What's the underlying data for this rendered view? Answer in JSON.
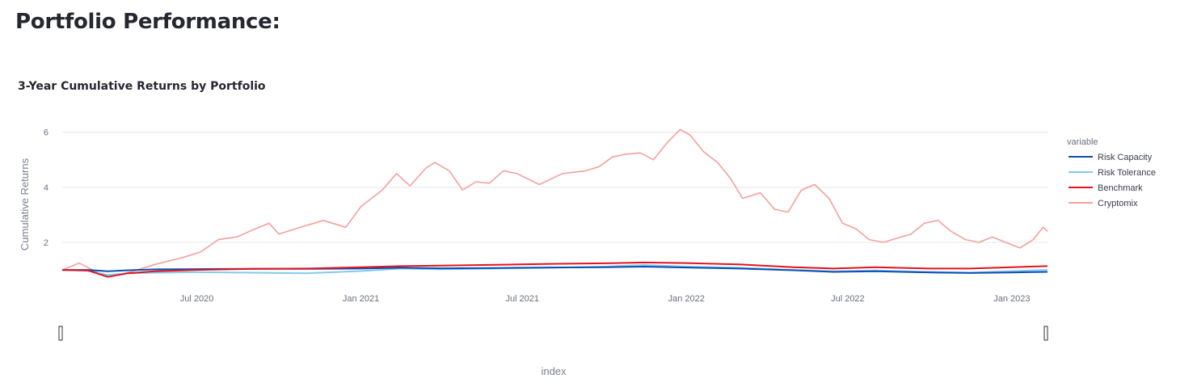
{
  "page": {
    "title": "Portfolio Performance:"
  },
  "chart_data": {
    "type": "line",
    "title": "3-Year Cumulative Returns by Portfolio",
    "xlabel": "index",
    "ylabel": "Cumulative Returns",
    "xlim": [
      "2020-02-01",
      "2023-02-10"
    ],
    "ylim": [
      0.3,
      6.4
    ],
    "x_ticks": [
      {
        "date": "2020-07-01",
        "label": "Jul 2020"
      },
      {
        "date": "2021-01-01",
        "label": "Jan 2021"
      },
      {
        "date": "2021-07-01",
        "label": "Jul 2021"
      },
      {
        "date": "2022-01-01",
        "label": "Jan 2022"
      },
      {
        "date": "2022-07-01",
        "label": "Jul 2022"
      },
      {
        "date": "2023-01-01",
        "label": "Jan 2023"
      }
    ],
    "y_ticks": [
      2,
      4,
      6
    ],
    "grid": true,
    "legend": {
      "title": "variable",
      "position": "right"
    },
    "range_slider": true,
    "series": [
      {
        "name": "Risk Capacity",
        "color": "#0a4fb0",
        "points": [
          [
            "2020-02-01",
            1.0
          ],
          [
            "2020-03-01",
            1.0
          ],
          [
            "2020-03-23",
            0.95
          ],
          [
            "2020-04-15",
            0.99
          ],
          [
            "2020-05-15",
            1.02
          ],
          [
            "2020-07-01",
            1.03
          ],
          [
            "2020-09-01",
            1.04
          ],
          [
            "2020-11-01",
            1.04
          ],
          [
            "2021-01-01",
            1.05
          ],
          [
            "2021-02-15",
            1.08
          ],
          [
            "2021-04-01",
            1.06
          ],
          [
            "2021-06-01",
            1.07
          ],
          [
            "2021-08-01",
            1.09
          ],
          [
            "2021-10-01",
            1.1
          ],
          [
            "2021-11-15",
            1.12
          ],
          [
            "2022-01-01",
            1.09
          ],
          [
            "2022-03-01",
            1.05
          ],
          [
            "2022-05-01",
            0.99
          ],
          [
            "2022-06-15",
            0.93
          ],
          [
            "2022-08-01",
            0.95
          ],
          [
            "2022-10-01",
            0.91
          ],
          [
            "2022-11-15",
            0.89
          ],
          [
            "2023-01-01",
            0.91
          ],
          [
            "2023-02-10",
            0.93
          ]
        ]
      },
      {
        "name": "Risk Tolerance",
        "color": "#83c9f0",
        "points": [
          [
            "2020-02-01",
            1.0
          ],
          [
            "2020-03-01",
            0.97
          ],
          [
            "2020-03-23",
            0.82
          ],
          [
            "2020-04-15",
            0.88
          ],
          [
            "2020-05-15",
            0.9
          ],
          [
            "2020-07-01",
            0.92
          ],
          [
            "2020-09-01",
            0.9
          ],
          [
            "2020-11-01",
            0.88
          ],
          [
            "2021-01-01",
            0.96
          ],
          [
            "2021-02-15",
            1.05
          ],
          [
            "2021-04-01",
            1.02
          ],
          [
            "2021-06-01",
            1.05
          ],
          [
            "2021-08-01",
            1.08
          ],
          [
            "2021-10-01",
            1.12
          ],
          [
            "2021-11-15",
            1.18
          ],
          [
            "2022-01-01",
            1.12
          ],
          [
            "2022-03-01",
            1.08
          ],
          [
            "2022-05-01",
            1.0
          ],
          [
            "2022-06-15",
            0.95
          ],
          [
            "2022-08-01",
            0.98
          ],
          [
            "2022-10-01",
            0.93
          ],
          [
            "2022-11-15",
            0.9
          ],
          [
            "2023-01-01",
            0.96
          ],
          [
            "2023-02-10",
            1.0
          ]
        ]
      },
      {
        "name": "Benchmark",
        "color": "#e0141e",
        "points": [
          [
            "2020-02-01",
            1.0
          ],
          [
            "2020-03-01",
            0.98
          ],
          [
            "2020-03-23",
            0.75
          ],
          [
            "2020-04-15",
            0.88
          ],
          [
            "2020-05-15",
            0.95
          ],
          [
            "2020-07-01",
            1.0
          ],
          [
            "2020-09-01",
            1.04
          ],
          [
            "2020-11-01",
            1.05
          ],
          [
            "2021-01-01",
            1.1
          ],
          [
            "2021-02-15",
            1.14
          ],
          [
            "2021-04-01",
            1.16
          ],
          [
            "2021-06-01",
            1.19
          ],
          [
            "2021-08-01",
            1.22
          ],
          [
            "2021-10-01",
            1.24
          ],
          [
            "2021-11-15",
            1.27
          ],
          [
            "2022-01-01",
            1.25
          ],
          [
            "2022-03-01",
            1.2
          ],
          [
            "2022-05-01",
            1.1
          ],
          [
            "2022-06-15",
            1.05
          ],
          [
            "2022-08-01",
            1.1
          ],
          [
            "2022-10-01",
            1.05
          ],
          [
            "2022-11-15",
            1.05
          ],
          [
            "2023-01-01",
            1.1
          ],
          [
            "2023-02-10",
            1.14
          ]
        ]
      },
      {
        "name": "Cryptomix",
        "color": "#f4a09c",
        "points": [
          [
            "2020-02-01",
            1.0
          ],
          [
            "2020-02-20",
            1.25
          ],
          [
            "2020-03-12",
            0.9
          ],
          [
            "2020-03-25",
            0.75
          ],
          [
            "2020-04-20",
            0.95
          ],
          [
            "2020-05-15",
            1.2
          ],
          [
            "2020-06-15",
            1.45
          ],
          [
            "2020-07-05",
            1.65
          ],
          [
            "2020-07-25",
            2.1
          ],
          [
            "2020-08-15",
            2.2
          ],
          [
            "2020-09-05",
            2.5
          ],
          [
            "2020-09-20",
            2.7
          ],
          [
            "2020-10-01",
            2.3
          ],
          [
            "2020-10-25",
            2.55
          ],
          [
            "2020-11-20",
            2.8
          ],
          [
            "2020-12-15",
            2.55
          ],
          [
            "2021-01-01",
            3.3
          ],
          [
            "2021-01-25",
            3.9
          ],
          [
            "2021-02-10",
            4.5
          ],
          [
            "2021-02-25",
            4.05
          ],
          [
            "2021-03-15",
            4.7
          ],
          [
            "2021-03-25",
            4.9
          ],
          [
            "2021-04-10",
            4.6
          ],
          [
            "2021-04-25",
            3.9
          ],
          [
            "2021-05-10",
            4.2
          ],
          [
            "2021-05-25",
            4.15
          ],
          [
            "2021-06-10",
            4.6
          ],
          [
            "2021-06-25",
            4.5
          ],
          [
            "2021-07-20",
            4.1
          ],
          [
            "2021-08-15",
            4.5
          ],
          [
            "2021-09-10",
            4.6
          ],
          [
            "2021-09-25",
            4.75
          ],
          [
            "2021-10-10",
            5.1
          ],
          [
            "2021-10-25",
            5.2
          ],
          [
            "2021-11-10",
            5.25
          ],
          [
            "2021-11-25",
            5.0
          ],
          [
            "2021-12-10",
            5.6
          ],
          [
            "2021-12-25",
            6.1
          ],
          [
            "2022-01-05",
            5.9
          ],
          [
            "2022-01-20",
            5.3
          ],
          [
            "2022-02-05",
            4.9
          ],
          [
            "2022-02-20",
            4.3
          ],
          [
            "2022-03-05",
            3.6
          ],
          [
            "2022-03-25",
            3.8
          ],
          [
            "2022-04-10",
            3.2
          ],
          [
            "2022-04-25",
            3.1
          ],
          [
            "2022-05-10",
            3.9
          ],
          [
            "2022-05-25",
            4.1
          ],
          [
            "2022-06-10",
            3.6
          ],
          [
            "2022-06-25",
            2.7
          ],
          [
            "2022-07-10",
            2.5
          ],
          [
            "2022-07-25",
            2.1
          ],
          [
            "2022-08-10",
            2.0
          ],
          [
            "2022-08-25",
            2.15
          ],
          [
            "2022-09-10",
            2.3
          ],
          [
            "2022-09-25",
            2.7
          ],
          [
            "2022-10-10",
            2.8
          ],
          [
            "2022-10-25",
            2.4
          ],
          [
            "2022-11-10",
            2.1
          ],
          [
            "2022-11-25",
            2.0
          ],
          [
            "2022-12-10",
            2.2
          ],
          [
            "2022-12-25",
            2.0
          ],
          [
            "2023-01-10",
            1.8
          ],
          [
            "2023-01-25",
            2.1
          ],
          [
            "2023-02-05",
            2.55
          ],
          [
            "2023-02-10",
            2.4
          ]
        ]
      }
    ]
  }
}
